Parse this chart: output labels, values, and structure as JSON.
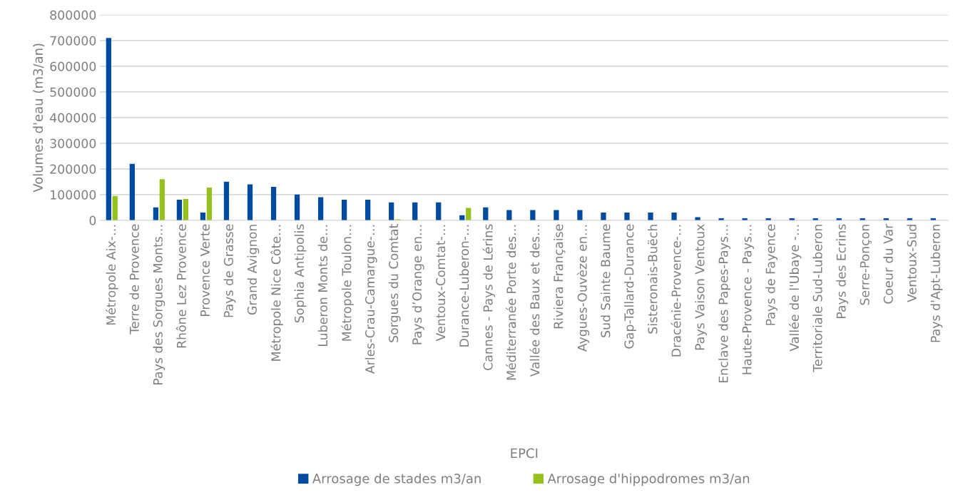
{
  "chart_data": {
    "type": "bar",
    "xlabel": "EPCI",
    "ylabel": "Volumes d'eau (m3/an)",
    "categories": [
      "Métropole Aix-…",
      "Terre de Provence",
      "Pays des Sorgues Monts…",
      "Rhône Lez Provence",
      "Provence Verte",
      "Pays de Grasse",
      "Grand Avignon",
      "Métropole Nice Côte…",
      "Sophia Antipolis",
      "Luberon Monts de…",
      "Métropole Toulon…",
      "Arles-Crau-Camargue-…",
      "Sorgues du Comtat",
      "Pays d’Orange en…",
      "Ventoux-Comtat-…",
      "Durance-Luberon-…",
      "Cannes - Pays de Lérins",
      "Méditerranée Porte des…",
      "Vallée des Baux et des…",
      "Riviera Française",
      "Aygues-Ouvèze en…",
      "Sud Sainte Baume",
      "Gap-Tallard-Durance",
      "Sisteronais-Buëch",
      "Dracénie-Provence-…",
      "Pays Vaison Ventoux",
      "Enclave des Papes-Pays…",
      "Haute-Provence - Pays…",
      "Pays de Fayence",
      "Vallée de l'Ubaye -…",
      "Territoriale Sud-Luberon",
      "Pays des Ecrins",
      "Serre-Ponçon",
      "Coeur du Var",
      "Ventoux-Sud",
      "Pays d'Apt-Luberon"
    ],
    "series": [
      {
        "name": "Arrosage de stades m3/an",
        "color": "#004a9f",
        "values": [
          710000,
          220000,
          50000,
          80000,
          30000,
          150000,
          140000,
          130000,
          100000,
          90000,
          80000,
          80000,
          70000,
          70000,
          70000,
          20000,
          50000,
          40000,
          40000,
          40000,
          40000,
          30000,
          30000,
          30000,
          30000,
          12000,
          8000,
          8000,
          8000,
          8000,
          8000,
          8000,
          8000,
          8000,
          8000,
          8000
        ]
      },
      {
        "name": "Arrosage d'hippodromes m3/an",
        "color": "#95c11f",
        "values": [
          95000,
          null,
          160000,
          83000,
          127000,
          null,
          null,
          null,
          null,
          null,
          null,
          null,
          4000,
          null,
          null,
          48000,
          null,
          null,
          null,
          null,
          null,
          null,
          null,
          null,
          null,
          null,
          null,
          null,
          null,
          null,
          null,
          null,
          null,
          null,
          null,
          null
        ]
      }
    ],
    "ylim": [
      0,
      800000
    ],
    "yticks": [
      0,
      100000,
      200000,
      300000,
      400000,
      500000,
      600000,
      700000,
      800000
    ],
    "grid": "y",
    "legend": "bottom"
  }
}
